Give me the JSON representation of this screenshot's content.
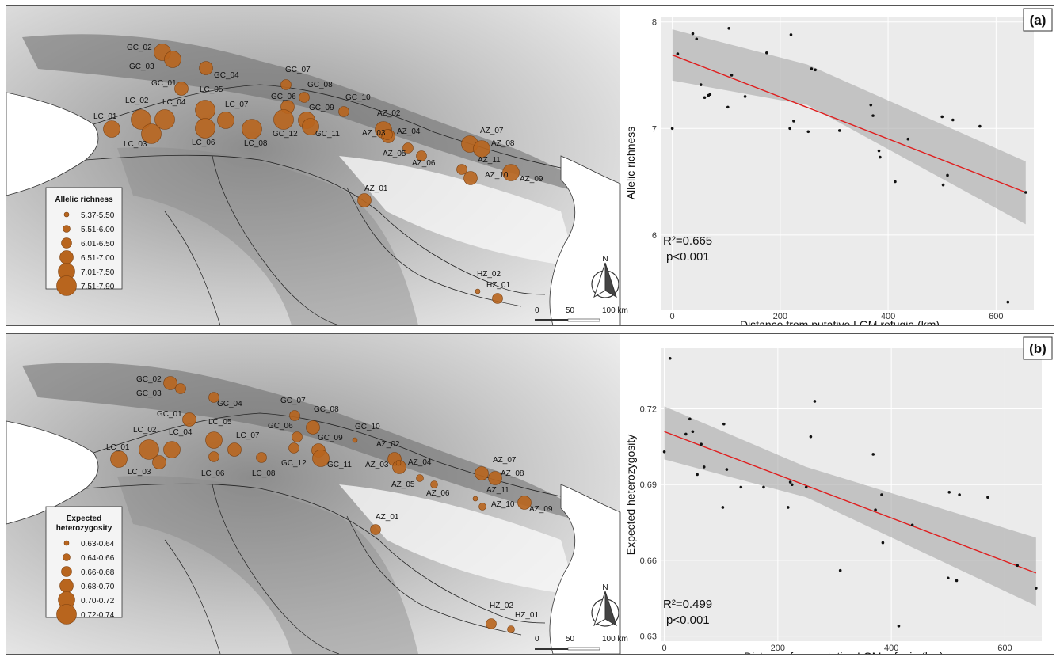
{
  "panels": [
    {
      "id": "a",
      "tag": "(a)",
      "legend": {
        "title_lines": [
          "Allelic richness"
        ],
        "classes": [
          "5.37-5.50",
          "5.51-6.00",
          "6.01-6.50",
          "6.51-7.00",
          "7.01-7.50",
          "7.51-7.90"
        ]
      },
      "north_label": "N",
      "scale_labels": [
        "0",
        "50",
        "100 km"
      ],
      "sites": [
        {
          "name": "GC_02",
          "size": 5
        },
        {
          "name": "GC_03",
          "size": 5
        },
        {
          "name": "GC_04",
          "size": 4
        },
        {
          "name": "GC_01",
          "size": 4
        },
        {
          "name": "GC_07",
          "size": 3
        },
        {
          "name": "GC_08",
          "size": 3
        },
        {
          "name": "GC_06",
          "size": 4
        },
        {
          "name": "GC_10",
          "size": 3
        },
        {
          "name": "GC_09",
          "size": 5
        },
        {
          "name": "GC_12",
          "size": 6
        },
        {
          "name": "GC_11",
          "size": 5
        },
        {
          "name": "LC_02",
          "size": 6
        },
        {
          "name": "LC_04",
          "size": 6
        },
        {
          "name": "LC_05",
          "size": 6
        },
        {
          "name": "LC_07",
          "size": 5
        },
        {
          "name": "LC_01",
          "size": 5
        },
        {
          "name": "LC_03",
          "size": 6
        },
        {
          "name": "LC_06",
          "size": 6
        },
        {
          "name": "LC_08",
          "size": 6
        },
        {
          "name": "AZ_02",
          "size": 5
        },
        {
          "name": "AZ_03",
          "size": 4
        },
        {
          "name": "AZ_04",
          "size": 3
        },
        {
          "name": "AZ_05",
          "size": 3
        },
        {
          "name": "AZ_06",
          "size": 3
        },
        {
          "name": "AZ_07",
          "size": 5
        },
        {
          "name": "AZ_08",
          "size": 5
        },
        {
          "name": "AZ_11",
          "size": 3
        },
        {
          "name": "AZ_10",
          "size": 4
        },
        {
          "name": "AZ_09",
          "size": 5
        },
        {
          "name": "AZ_01",
          "size": 4
        },
        {
          "name": "HZ_02",
          "size": 1
        },
        {
          "name": "HZ_01",
          "size": 3
        }
      ],
      "chart_data": {
        "type": "scatter",
        "xlabel": "Distance from putative LGM refugia (km)",
        "ylabel": "Allelic richness",
        "xlim": [
          -20,
          670
        ],
        "ylim": [
          5.3,
          8.05
        ],
        "xticks": [
          0,
          200,
          400,
          600
        ],
        "yticks": [
          6,
          7,
          8
        ],
        "ytick_labels": [
          "6",
          "7",
          "8"
        ],
        "x": [
          0,
          10,
          38,
          45,
          53,
          60,
          67,
          70,
          103,
          105,
          110,
          135,
          175,
          218,
          220,
          225,
          252,
          258,
          265,
          310,
          368,
          372,
          383,
          385,
          413,
          437,
          500,
          502,
          510,
          520,
          570,
          622,
          655
        ],
        "y": [
          7.0,
          7.7,
          7.89,
          7.84,
          7.41,
          7.29,
          7.31,
          7.32,
          7.2,
          7.94,
          7.5,
          7.3,
          7.71,
          7.0,
          7.88,
          7.07,
          6.97,
          7.56,
          7.55,
          6.98,
          7.22,
          7.12,
          6.79,
          6.73,
          6.5,
          6.9,
          7.11,
          6.47,
          6.56,
          7.08,
          7.02,
          5.37,
          6.4
        ],
        "fit": {
          "x": [
            0,
            655
          ],
          "y": [
            7.69,
            6.4
          ]
        },
        "band_upper": [
          7.93,
          7.6,
          6.69
        ],
        "band_lower": [
          7.45,
          7.22,
          6.1
        ],
        "band_x": [
          0,
          250,
          655
        ],
        "stats": {
          "r2": "R²=0.665",
          "p": "p<0.001"
        }
      }
    },
    {
      "id": "b",
      "tag": "(b)",
      "legend": {
        "title_lines": [
          "Expected",
          "heterozygosity"
        ],
        "classes": [
          "0.63-0.64",
          "0.64-0.66",
          "0.66-0.68",
          "0.68-0.70",
          "0.70-0.72",
          "0.72-0.74"
        ]
      },
      "north_label": "N",
      "scale_labels": [
        "0",
        "50",
        "100 km"
      ],
      "sites": [
        {
          "name": "GC_02",
          "size": 4
        },
        {
          "name": "GC_03",
          "size": 3
        },
        {
          "name": "GC_04",
          "size": 3
        },
        {
          "name": "GC_01",
          "size": 4
        },
        {
          "name": "GC_07",
          "size": 3
        },
        {
          "name": "GC_08",
          "size": 4
        },
        {
          "name": "GC_06",
          "size": 3
        },
        {
          "name": "GC_10",
          "size": 1
        },
        {
          "name": "GC_09",
          "size": 4
        },
        {
          "name": "GC_12",
          "size": 3
        },
        {
          "name": "GC_11",
          "size": 5
        },
        {
          "name": "LC_02",
          "size": 6
        },
        {
          "name": "LC_04",
          "size": 5
        },
        {
          "name": "LC_05",
          "size": 5
        },
        {
          "name": "LC_07",
          "size": 4
        },
        {
          "name": "LC_01",
          "size": 5
        },
        {
          "name": "LC_03",
          "size": 4
        },
        {
          "name": "LC_06",
          "size": 3
        },
        {
          "name": "LC_08",
          "size": 3
        },
        {
          "name": "AZ_02",
          "size": 4
        },
        {
          "name": "AZ_03",
          "size": 4
        },
        {
          "name": "AZ_04",
          "size": 1
        },
        {
          "name": "AZ_05",
          "size": 2
        },
        {
          "name": "AZ_06",
          "size": 2
        },
        {
          "name": "AZ_07",
          "size": 4
        },
        {
          "name": "AZ_08",
          "size": 4
        },
        {
          "name": "AZ_11",
          "size": 1
        },
        {
          "name": "AZ_10",
          "size": 2
        },
        {
          "name": "AZ_09",
          "size": 4
        },
        {
          "name": "AZ_01",
          "size": 3
        },
        {
          "name": "HZ_02",
          "size": 3
        },
        {
          "name": "HZ_01",
          "size": 2
        }
      ],
      "chart_data": {
        "type": "scatter",
        "xlabel": "Distance from putative LGM refugia (km)",
        "ylabel": "Expected heterozygosity",
        "xlim": [
          -5,
          665
        ],
        "ylim": [
          0.628,
          0.744
        ],
        "xticks": [
          0,
          200,
          400,
          600
        ],
        "yticks": [
          0.63,
          0.66,
          0.69,
          0.72
        ],
        "ytick_labels": [
          "0.63",
          "0.66",
          "0.69",
          "0.72"
        ],
        "x": [
          0,
          10,
          38,
          45,
          50,
          58,
          65,
          70,
          103,
          105,
          110,
          135,
          175,
          218,
          222,
          225,
          250,
          258,
          265,
          310,
          368,
          372,
          383,
          385,
          413,
          437,
          500,
          502,
          515,
          520,
          570,
          622,
          655
        ],
        "y": [
          0.703,
          0.74,
          0.71,
          0.716,
          0.711,
          0.694,
          0.706,
          0.697,
          0.681,
          0.714,
          0.696,
          0.689,
          0.689,
          0.681,
          0.691,
          0.69,
          0.689,
          0.709,
          0.723,
          0.656,
          0.702,
          0.68,
          0.686,
          0.667,
          0.634,
          0.674,
          0.653,
          0.687,
          0.652,
          0.686,
          0.685,
          0.658,
          0.649
        ],
        "fit": {
          "x": [
            0,
            655
          ],
          "y": [
            0.711,
            0.655
          ]
        },
        "band_upper": [
          0.721,
          0.697,
          0.669
        ],
        "band_lower": [
          0.7,
          0.685,
          0.642
        ],
        "band_x": [
          0,
          250,
          655
        ],
        "stats": {
          "r2": "R²=0.499",
          "p": "p<0.001"
        }
      }
    }
  ]
}
